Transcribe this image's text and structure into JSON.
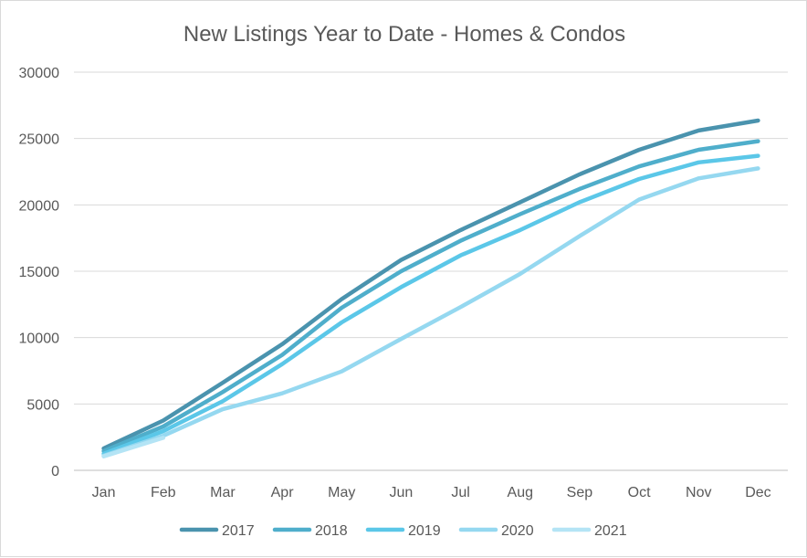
{
  "chart_data": {
    "type": "line",
    "title": "New Listings Year to Date - Homes & Condos",
    "categories": [
      "Jan",
      "Feb",
      "Mar",
      "Apr",
      "May",
      "Jun",
      "Jul",
      "Aug",
      "Sep",
      "Oct",
      "Nov",
      "Dec"
    ],
    "y_ticks": [
      "0",
      "5000",
      "10000",
      "15000",
      "20000",
      "25000",
      "30000"
    ],
    "ylim": [
      0,
      30000
    ],
    "grid": true,
    "legend_position": "bottom",
    "series": [
      {
        "name": "2017",
        "color": "#4A93AE",
        "values": [
          1650,
          3750,
          6600,
          9500,
          12900,
          15850,
          18100,
          20200,
          22300,
          24150,
          25600,
          26350
        ]
      },
      {
        "name": "2018",
        "color": "#4FAECB",
        "values": [
          1450,
          3300,
          5900,
          8700,
          12250,
          15000,
          17300,
          19300,
          21200,
          22900,
          24150,
          24800
        ]
      },
      {
        "name": "2019",
        "color": "#5BC7E8",
        "values": [
          1250,
          2950,
          5200,
          8000,
          11150,
          13800,
          16200,
          18100,
          20200,
          21950,
          23200,
          23700
        ]
      },
      {
        "name": "2020",
        "color": "#95D8F0",
        "values": [
          1100,
          2600,
          4600,
          5800,
          7450,
          9900,
          12300,
          14800,
          17650,
          20400,
          22000,
          22750
        ]
      },
      {
        "name": "2021",
        "color": "#B4E4F5",
        "values": [
          1050,
          2450,
          null,
          null,
          null,
          null,
          null,
          null,
          null,
          null,
          null,
          null
        ]
      }
    ]
  }
}
